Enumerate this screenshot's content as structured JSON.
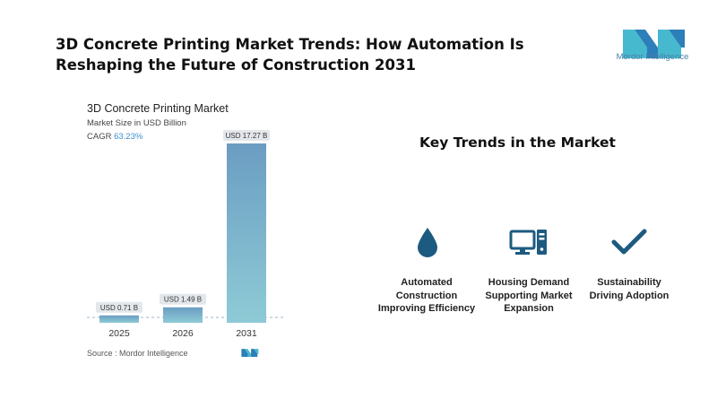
{
  "headline": "3D Concrete Printing Market Trends: How Automation Is Reshaping the Future of Construction 2031",
  "logo": {
    "text": "Mordor Intelligence",
    "icon": "mordor-logo",
    "color": "#47b9cf"
  },
  "chart": {
    "title": "3D Concrete Printing Market",
    "subtitle": "Market Size in USD Billion",
    "cagr_label": "CAGR",
    "cagr_value": "63.23%",
    "source": "Source :  Mordor Intelligence"
  },
  "chart_data": {
    "type": "bar",
    "categories": [
      "2025",
      "2026",
      "2031"
    ],
    "values": [
      0.71,
      1.49,
      17.27
    ],
    "data_labels": [
      "USD 0.71 B",
      "USD 1.49 B",
      "USD 17.27 B"
    ],
    "title": "3D Concrete Printing Market",
    "ylabel": "Market Size in USD Billion",
    "ylim": [
      0,
      17.27
    ],
    "grid": false,
    "colors": {
      "bar_top": "#6b9dc2",
      "bar_bottom": "#8ecbd6",
      "label_bg": "#e3e7eb",
      "baseline": "#9fb5c8"
    }
  },
  "trends": {
    "title": "Key Trends in the Market",
    "icon_color": "#1d5a80",
    "items": [
      {
        "icon": "water-drop-icon",
        "label": "Automated Construction Improving Efficiency"
      },
      {
        "icon": "computer-icon",
        "label": "Housing Demand Supporting Market Expansion"
      },
      {
        "icon": "checkmark-icon",
        "label": "Sustainability Driving Adoption"
      }
    ]
  }
}
